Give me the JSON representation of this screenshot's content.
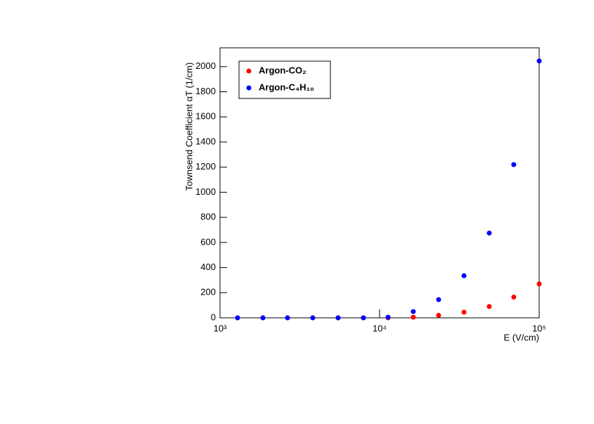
{
  "chart_data": {
    "type": "scatter",
    "x_label": "E (V/cm)",
    "y_label": "Townsend Coefficient αT (1/cm)",
    "x": [
      1288,
      1858,
      2649,
      3811,
      5495,
      7920,
      11300,
      16260,
      23440,
      33800,
      48650,
      69300,
      100000
    ],
    "series": [
      {
        "name": "Argon-CO₂",
        "color": "#ff0000",
        "values": [
          0,
          0,
          0,
          0,
          0,
          0,
          0,
          5,
          20,
          45,
          90,
          165,
          270
        ]
      },
      {
        "name": "Argon-C₄H₁₀",
        "color": "#0000ff",
        "values": [
          0,
          0,
          0,
          0,
          0,
          0,
          5,
          50,
          145,
          335,
          675,
          1220,
          2045
        ]
      }
    ],
    "xscale": "log",
    "xlim": [
      1000,
      100000
    ],
    "xticks": [
      {
        "value": 1000,
        "label": "10³"
      },
      {
        "value": 10000,
        "label": "10⁴"
      },
      {
        "value": 100000,
        "label": "10⁵"
      }
    ],
    "ylim": [
      0,
      2150
    ],
    "yticks": [
      0,
      200,
      400,
      600,
      800,
      1000,
      1200,
      1400,
      1600,
      1800,
      2000
    ],
    "legend": "upper-left"
  }
}
